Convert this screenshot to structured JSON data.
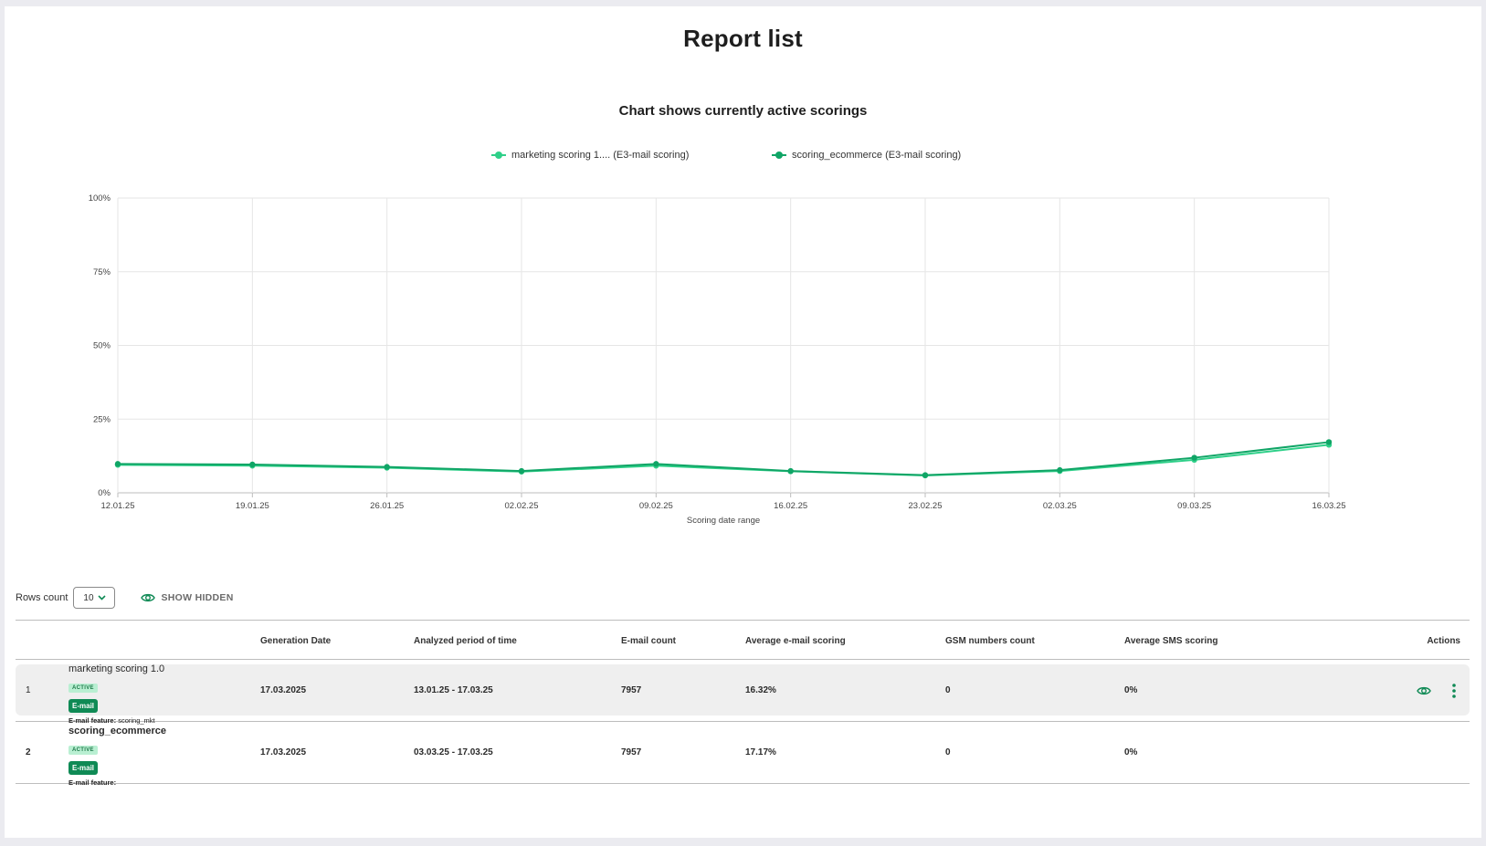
{
  "page": {
    "title": "Report list"
  },
  "chart": {
    "title": "Chart shows currently active scorings",
    "legend": [
      {
        "label": "marketing scoring 1.... (E3-mail scoring)",
        "color": "#2fd089"
      },
      {
        "label": "scoring_ecommerce (E3-mail scoring)",
        "color": "#10a566"
      }
    ]
  },
  "chart_data": {
    "type": "line",
    "title": "Chart shows currently active scorings",
    "xlabel": "Scoring date range",
    "ylabel": "",
    "x": [
      "12.01.25",
      "19.01.25",
      "26.01.25",
      "02.02.25",
      "09.02.25",
      "16.02.25",
      "23.02.25",
      "02.03.25",
      "09.03.25",
      "16.03.25"
    ],
    "ylim": [
      0,
      100
    ],
    "yticks": [
      "0%",
      "25%",
      "50%",
      "75%",
      "100%"
    ],
    "grid": true,
    "legend_position": "top",
    "series": [
      {
        "name": "marketing scoring 1.... (E3-mail scoring)",
        "color": "#2fd089",
        "values": [
          9.5,
          9.2,
          8.5,
          7.2,
          9.2,
          7.3,
          5.9,
          7.4,
          11.2,
          16.3
        ]
      },
      {
        "name": "scoring_ecommerce (E3-mail scoring)",
        "color": "#10a566",
        "values": [
          9.8,
          9.6,
          8.8,
          7.4,
          9.8,
          7.4,
          6.0,
          7.7,
          11.9,
          17.2
        ]
      }
    ]
  },
  "controls": {
    "rows_label": "Rows count",
    "rows_value": "10",
    "show_hidden": "SHOW HIDDEN"
  },
  "table": {
    "headers": {
      "generation_date": "Generation Date",
      "period": "Analyzed period of time",
      "email_count": "E-mail count",
      "avg_email": "Average e-mail scoring",
      "gsm_count": "GSM numbers count",
      "avg_sms": "Average SMS scoring",
      "actions": "Actions"
    },
    "rows": [
      {
        "index": "1",
        "name": "marketing scoring 1.0",
        "status": "ACTIVE",
        "channel": "E-mail",
        "feature_label": "E-mail feature:",
        "feature_value": "scoring_mkt",
        "generation_date": "17.03.2025",
        "period": "13.01.25 - 17.03.25",
        "email_count": "7957",
        "avg_email": "16.32%",
        "gsm_count": "0",
        "avg_sms": "0%"
      },
      {
        "index": "2",
        "name": "scoring_ecommerce",
        "status": "ACTIVE",
        "channel": "E-mail",
        "feature_label": "E-mail feature:",
        "feature_value": "",
        "generation_date": "17.03.2025",
        "period": "03.03.25 - 17.03.25",
        "email_count": "7957",
        "avg_email": "17.17%",
        "gsm_count": "0",
        "avg_sms": "0%"
      }
    ]
  }
}
